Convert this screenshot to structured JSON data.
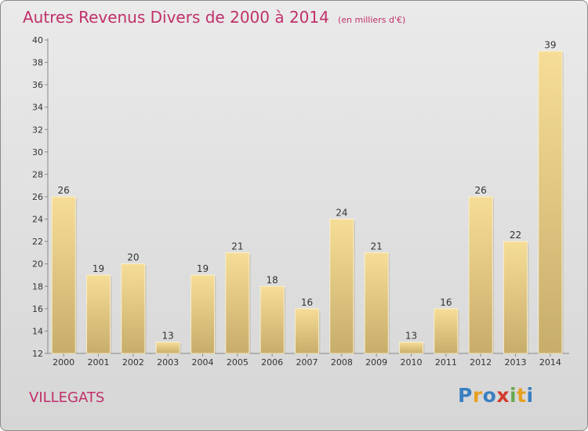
{
  "chart_data": {
    "type": "bar",
    "title": "Autres Revenus Divers de 2000 à 2014",
    "subtitle": "(en milliers d'€)",
    "categories": [
      "2000",
      "2001",
      "2002",
      "2003",
      "2004",
      "2005",
      "2006",
      "2007",
      "2008",
      "2009",
      "2010",
      "2011",
      "2012",
      "2013",
      "2014"
    ],
    "values": [
      26,
      19,
      20,
      13,
      19,
      21,
      18,
      16,
      24,
      21,
      13,
      16,
      26,
      22,
      39
    ],
    "ylim": [
      12,
      40
    ],
    "yticks": [
      "12",
      "14",
      "16",
      "18",
      "20",
      "22",
      "24",
      "26",
      "28",
      "30",
      "32",
      "34",
      "36",
      "38",
      "40"
    ],
    "grid": false,
    "bar_color": "#e8c97a"
  },
  "footer": {
    "location": "VILLEGATS",
    "logo_letters": [
      {
        "ch": "P",
        "color": "#3a7fc1"
      },
      {
        "ch": "r",
        "color": "#e8a020"
      },
      {
        "ch": "o",
        "color": "#3a7fc1"
      },
      {
        "ch": "x",
        "color": "#d23a2a"
      },
      {
        "ch": "i",
        "color": "#6aa84f"
      },
      {
        "ch": "t",
        "color": "#e8a020"
      },
      {
        "ch": "i",
        "color": "#3a7fc1"
      }
    ]
  }
}
